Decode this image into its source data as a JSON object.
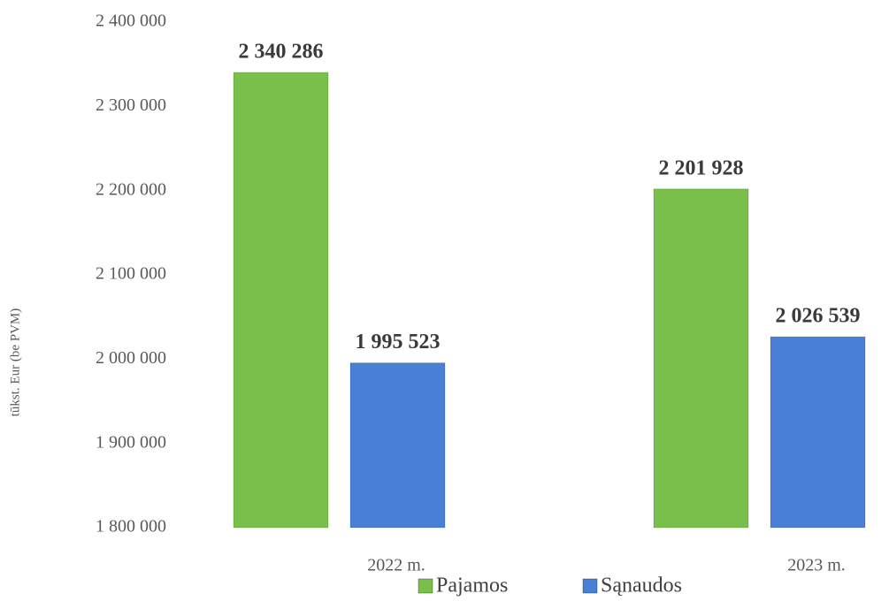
{
  "chart_data": {
    "type": "bar",
    "y_label": "tūkst. Eur (be PVM)",
    "categories": [
      "2022 m.",
      "2023 m."
    ],
    "series": [
      {
        "name": "Pajamos",
        "color": "#78c04a",
        "values": [
          2340286,
          2201928
        ],
        "value_labels": [
          "2 340 286",
          "2 201 928"
        ]
      },
      {
        "name": "Sąnaudos",
        "color": "#4a7fd6",
        "values": [
          1995523,
          2026539
        ],
        "value_labels": [
          "1 995 523",
          "2 026 539"
        ]
      }
    ],
    "ylim": [
      1800000,
      2400000
    ],
    "yticks": [
      {
        "value": 1800000,
        "label": "1 800 000"
      },
      {
        "value": 1900000,
        "label": "1 900 000"
      },
      {
        "value": 2000000,
        "label": "2 000 000"
      },
      {
        "value": 2100000,
        "label": "2 100 000"
      },
      {
        "value": 2200000,
        "label": "2 200 000"
      },
      {
        "value": 2300000,
        "label": "2 300 000"
      },
      {
        "value": 2400000,
        "label": "2 400 000"
      }
    ],
    "grid": false,
    "legend": "bottom"
  }
}
